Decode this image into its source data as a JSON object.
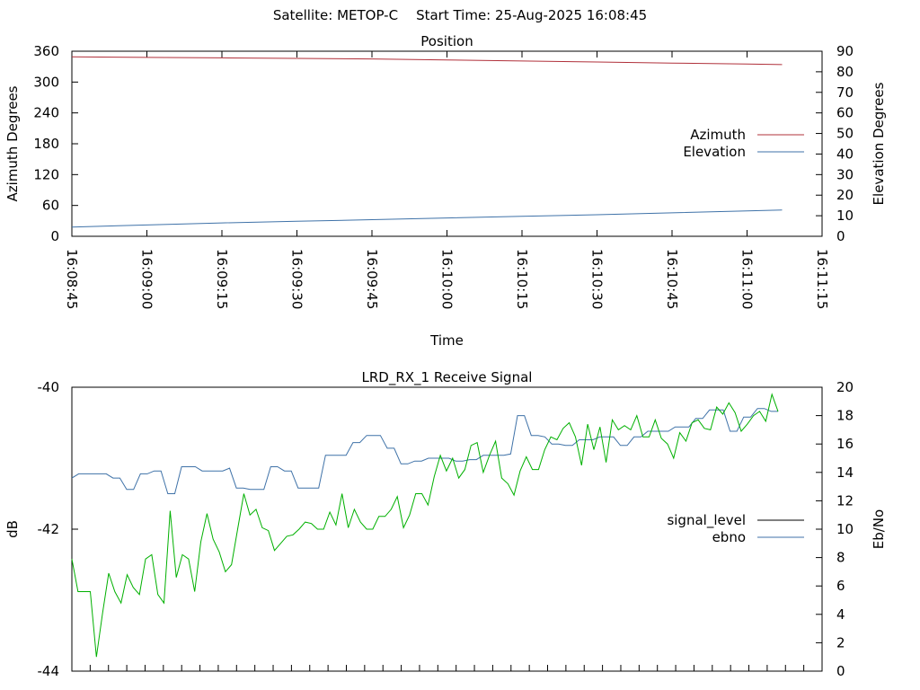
{
  "header": {
    "satellite_text": "Satellite: METOP-C",
    "start_time_text": "Start Time: 25-Aug-2025 16:08:45"
  },
  "chart_data": [
    {
      "type": "line",
      "title": "Position",
      "xlabel": "Time",
      "ylabel": "Azimuth Degrees",
      "y2label": "Elevation Degrees",
      "xlim": [
        "16:08:45",
        "16:11:15"
      ],
      "ylim": [
        0,
        360
      ],
      "y2lim": [
        0,
        90
      ],
      "x_ticks": [
        "16:08:45",
        "16:09:00",
        "16:09:15",
        "16:09:30",
        "16:09:45",
        "16:10:00",
        "16:10:15",
        "16:10:30",
        "16:10:45",
        "16:11:00",
        "16:11:15"
      ],
      "y_ticks": [
        "0",
        "60",
        "120",
        "180",
        "240",
        "300",
        "360"
      ],
      "y2_ticks": [
        "0",
        "10",
        "20",
        "30",
        "40",
        "50",
        "60",
        "70",
        "80",
        "90"
      ],
      "legend_placement": "right",
      "grid": false,
      "series": [
        {
          "name": "Azimuth",
          "axis": "left",
          "color": "#b0303a",
          "x": [
            "16:08:45",
            "16:09:00",
            "16:09:15",
            "16:09:30",
            "16:09:45",
            "16:10:00",
            "16:10:15",
            "16:10:30",
            "16:10:45",
            "16:11:00",
            "16:11:07"
          ],
          "values": [
            349,
            348,
            347,
            346,
            345,
            343,
            341,
            339,
            337,
            335,
            334
          ]
        },
        {
          "name": "Elevation",
          "axis": "right",
          "color": "#3f72a8",
          "x": [
            "16:08:45",
            "16:09:00",
            "16:09:15",
            "16:09:30",
            "16:09:45",
            "16:10:00",
            "16:10:15",
            "16:10:30",
            "16:10:45",
            "16:11:00",
            "16:11:07"
          ],
          "values": [
            4.5,
            5.5,
            6.5,
            7.3,
            8.1,
            8.9,
            9.7,
            10.5,
            11.4,
            12.3,
            12.8
          ]
        }
      ]
    },
    {
      "type": "line",
      "title": "LRD_RX_1 Receive Signal",
      "ylabel": "dB",
      "y2label": "Eb/No",
      "ylim": [
        -44,
        -40
      ],
      "y2lim": [
        0,
        20
      ],
      "y_ticks": [
        "-40",
        "-42",
        "-44"
      ],
      "y2_ticks": [
        "0",
        "2",
        "4",
        "6",
        "8",
        "10",
        "12",
        "14",
        "16",
        "18",
        "20"
      ],
      "x_tick_count": 42,
      "legend_placement": "right",
      "grid": false,
      "series": [
        {
          "name": "signal_level",
          "axis": "left",
          "color": "#000000",
          "values": []
        },
        {
          "name": "ebno",
          "axis": "right",
          "color": "#3f72a8",
          "values": [
            13.6,
            13.9,
            13.9,
            13.9,
            13.9,
            13.9,
            13.6,
            13.6,
            12.8,
            12.8,
            13.9,
            13.9,
            14.1,
            14.1,
            12.5,
            12.5,
            14.4,
            14.4,
            14.4,
            14.1,
            14.1,
            14.1,
            14.1,
            14.3,
            12.9,
            12.9,
            12.8,
            12.8,
            12.8,
            14.4,
            14.4,
            14.1,
            14.1,
            12.9,
            12.9,
            12.9,
            12.9,
            15.2,
            15.2,
            15.2,
            15.2,
            16.1,
            16.1,
            16.6,
            16.6,
            16.6,
            15.7,
            15.7,
            14.6,
            14.6,
            14.8,
            14.8,
            15.0,
            15.0,
            15.0,
            15.0,
            14.8,
            14.8,
            14.9,
            14.9,
            15.2,
            15.2,
            15.2,
            15.2,
            15.3,
            18.0,
            18.0,
            16.6,
            16.6,
            16.5,
            16.0,
            16.0,
            15.9,
            15.9,
            16.3,
            16.3,
            16.3,
            16.5,
            16.5,
            16.5,
            15.9,
            15.9,
            16.5,
            16.5,
            16.9,
            16.9,
            16.9,
            16.9,
            17.2,
            17.2,
            17.2,
            17.8,
            17.8,
            18.4,
            18.4,
            18.4,
            16.9,
            16.9,
            17.9,
            17.9,
            18.5,
            18.5,
            18.3,
            18.3
          ]
        },
        {
          "name": "",
          "axis": "right",
          "color": "#00b000",
          "values": [
            7.9,
            5.6,
            5.6,
            5.6,
            1.0,
            4.1,
            6.9,
            5.6,
            4.8,
            6.8,
            5.9,
            5.4,
            7.9,
            8.2,
            5.4,
            4.8,
            11.3,
            6.6,
            8.2,
            7.9,
            5.6,
            9.1,
            11.1,
            9.3,
            8.4,
            7.0,
            7.5,
            10.0,
            12.5,
            11.0,
            11.4,
            10.1,
            9.9,
            8.5,
            9.0,
            9.5,
            9.6,
            10.0,
            10.5,
            10.4,
            10.0,
            10.0,
            11.2,
            10.3,
            12.5,
            10.1,
            11.4,
            10.5,
            10.0,
            10.0,
            10.9,
            10.9,
            11.4,
            12.3,
            10.1,
            11.0,
            12.5,
            12.5,
            11.7,
            13.7,
            15.2,
            14.1,
            15.0,
            13.6,
            14.2,
            15.9,
            16.1,
            14.0,
            15.2,
            16.2,
            13.6,
            13.2,
            12.4,
            14.1,
            15.1,
            14.2,
            14.2,
            15.6,
            16.5,
            16.3,
            17.1,
            17.5,
            16.5,
            14.5,
            17.4,
            15.6,
            17.2,
            14.7,
            17.7,
            17.0,
            17.3,
            17.0,
            18.0,
            16.5,
            16.5,
            17.7,
            16.4,
            16.0,
            15.0,
            16.8,
            16.2,
            17.5,
            17.7,
            17.1,
            17.0,
            18.6,
            18.1,
            18.9,
            18.2,
            16.9,
            17.4,
            18.0,
            18.3,
            17.6,
            19.5,
            18.3
          ]
        }
      ]
    }
  ]
}
